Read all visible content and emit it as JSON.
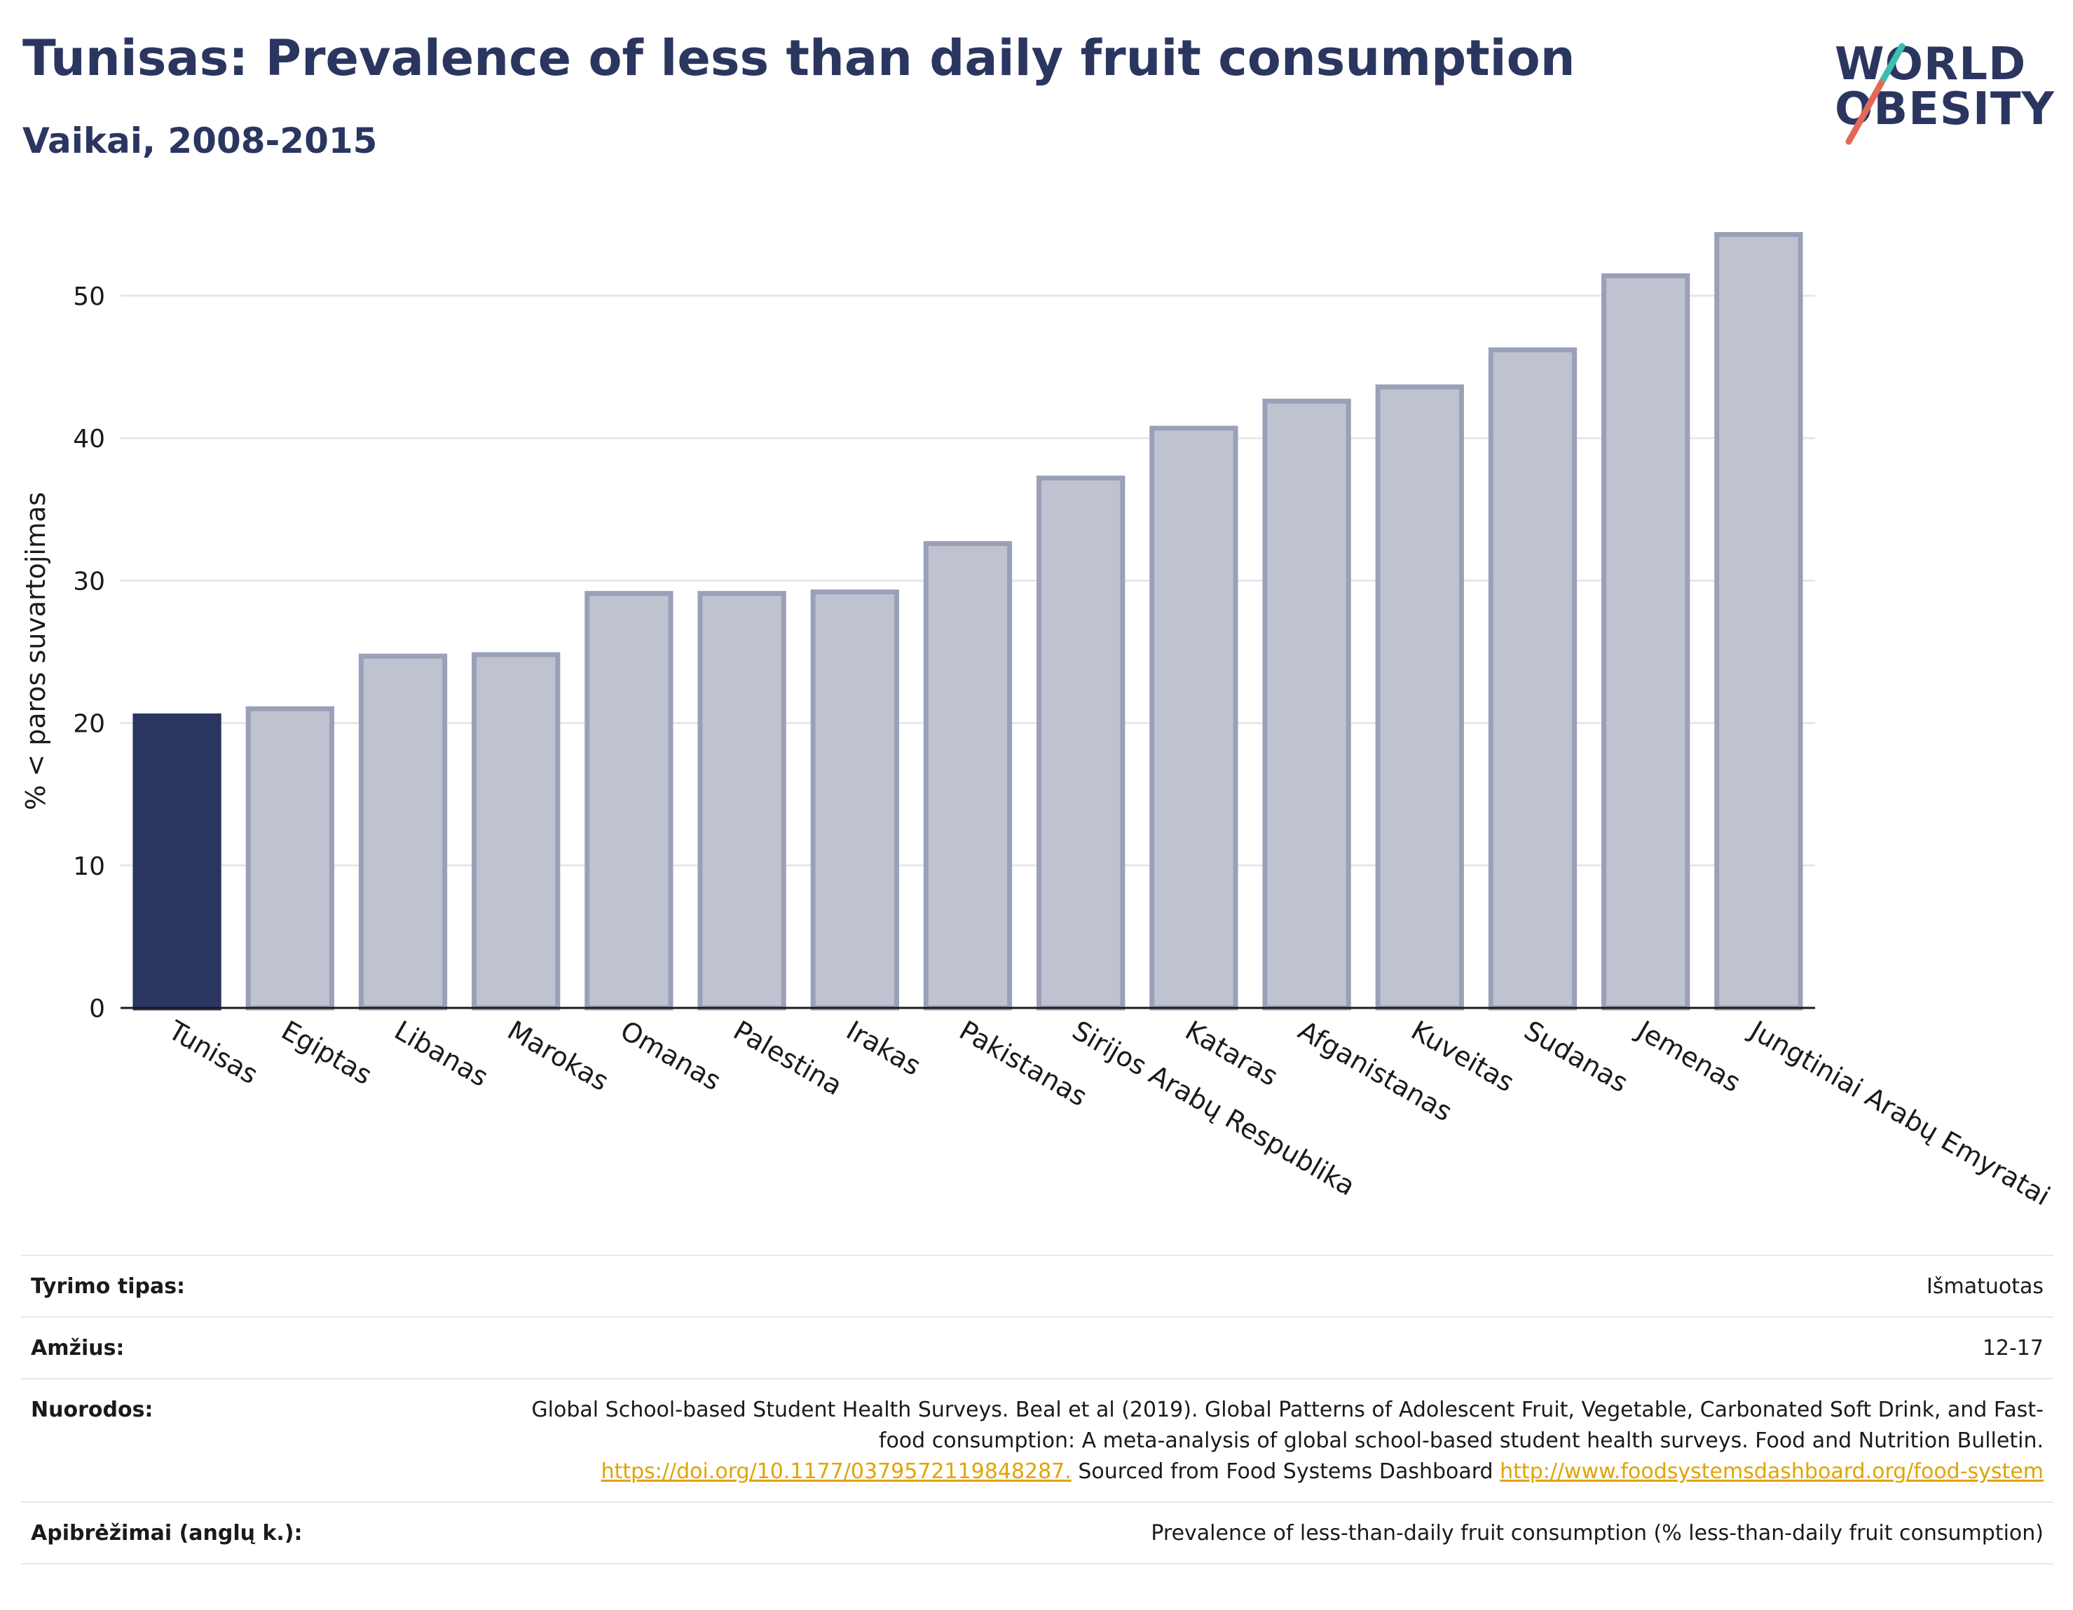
{
  "header": {
    "title": "Tunisas: Prevalence of less than daily fruit consumption",
    "subtitle": "Vaikai, 2008-2015"
  },
  "logo": {
    "line1": "WORLD",
    "line2": "OBESITY",
    "colors": {
      "text": "#2b3660",
      "slash_red": "#e4685a",
      "slash_teal": "#3cbfae"
    }
  },
  "chart_data": {
    "type": "bar",
    "ylabel": "% < paros suvartojimas",
    "xlabel": "",
    "ylim": [
      0,
      56
    ],
    "yticks": [
      0,
      10,
      20,
      30,
      40,
      50
    ],
    "grid": true,
    "highlight_category": "Tunisas",
    "colors": {
      "highlight": "#2b3660",
      "bar_fill": "#bfc3d0",
      "bar_stroke": "#9aa0b8",
      "grid": "#e6e6ec",
      "axis": "#1a1a1a"
    },
    "categories": [
      "Tunisas",
      "Egiptas",
      "Libanas",
      "Marokas",
      "Omanas",
      "Palestina",
      "Irakas",
      "Pakistanas",
      "Sirijos Arabų Respublika",
      "Kataras",
      "Afganistanas",
      "Kuveitas",
      "Sudanas",
      "Jemenas",
      "Jungtiniai Arabų Emyratai"
    ],
    "values": [
      20.5,
      21.0,
      24.7,
      24.8,
      29.1,
      29.1,
      29.2,
      32.6,
      37.2,
      40.7,
      42.6,
      43.6,
      46.2,
      51.4,
      54.3
    ]
  },
  "meta": {
    "rows": [
      {
        "label": "Tyrimo tipas:",
        "value": "Išmatuotas"
      },
      {
        "label": "Amžius:",
        "value": "12-17"
      },
      {
        "label": "Nuorodos:",
        "text1": "Global School-based Student Health Surveys. Beal et al (2019). Global Patterns of Adolescent Fruit, Vegetable, Carbonated Soft Drink, and Fast-food consumption: A meta-analysis of global school-based student health surveys. Food and Nutrition Bulletin.",
        "link1": "https://doi.org/10.1177/0379572119848287.",
        "text2": "Sourced from Food Systems Dashboard",
        "link2": "http://www.foodsystemsdashboard.org/food-system"
      },
      {
        "label": "Apibrėžimai (anglų k.):",
        "value": "Prevalence of less-than-daily fruit consumption (% less-than-daily fruit consumption)"
      }
    ],
    "link_color": "#e0a400"
  }
}
